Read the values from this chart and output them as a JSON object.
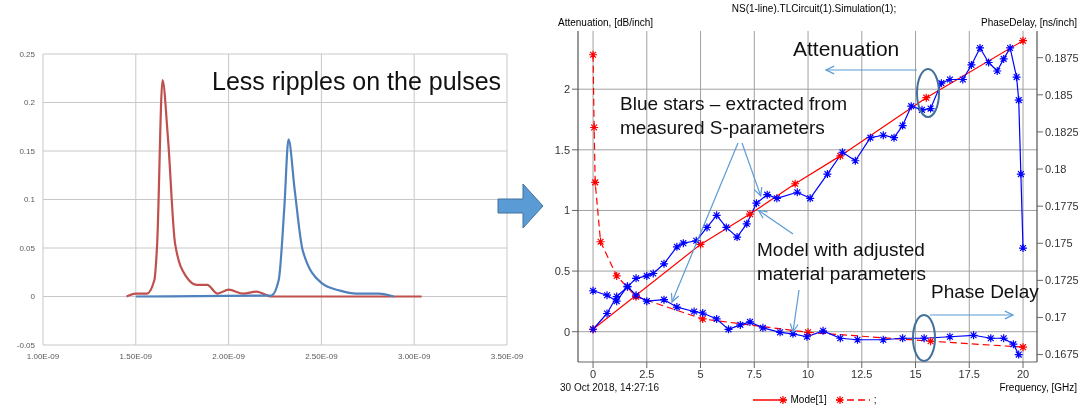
{
  "chart_data": [
    {
      "type": "line",
      "xlim": [
        1e-09,
        3.5e-09
      ],
      "xticks": [
        {
          "value": 1e-09,
          "label": "1.00E-09"
        },
        {
          "value": 1.5e-09,
          "label": "1.50E-09"
        },
        {
          "value": 2e-09,
          "label": "2.00E-09"
        },
        {
          "value": 2.5e-09,
          "label": "2.50E-09"
        },
        {
          "value": 3e-09,
          "label": "3.00E-09"
        },
        {
          "value": 3.5e-09,
          "label": "3.50E-09"
        }
      ],
      "ylim": [
        -0.05,
        0.25
      ],
      "yticks": [
        -0.05,
        0,
        0.05,
        0.1,
        0.15,
        0.2,
        0.25
      ],
      "grid": true,
      "annotations": [
        "Less ripples on the pulses"
      ],
      "series": [
        {
          "color": "#c0504d",
          "x": [
            1.45e-09,
            1.5e-09,
            1.56e-09,
            1.6e-09,
            1.615e-09,
            1.644e-09,
            1.673e-09,
            1.712e-09,
            1.77e-09,
            1.83e-09,
            1.885e-09,
            1.94e-09,
            2e-09,
            2.08e-09,
            2.15e-09,
            2.23e-09,
            3.04e-09
          ],
          "values": [
            0,
            0.003,
            0.003,
            0.017,
            0.054,
            0.223,
            0.164,
            0.054,
            0.021,
            0.012,
            0.012,
            0.003,
            0.007,
            0.003,
            0.005,
            0,
            0
          ]
        },
        {
          "color": "#4f81bd",
          "x": [
            1.5e-09,
            2.23e-09,
            2.27e-09,
            2.3e-09,
            2.323e-09,
            2.356e-09,
            2.4e-09,
            2.5e-09,
            2.6e-09,
            2.69e-09,
            2.81e-09,
            2.89e-09
          ],
          "values": [
            0,
            0.001,
            0.017,
            0.091,
            0.162,
            0.11,
            0.047,
            0.014,
            0.006,
            0.003,
            0.003,
            0
          ]
        }
      ]
    },
    {
      "type": "line",
      "title": "NS(1-line).TLCircuit(1).Simulation(1);",
      "ylabel": "Attenuation, [dB/inch]",
      "y2label": "PhaseDelay, [ns/inch]",
      "xlabel": "Frequency, [GHz]",
      "xlim": [
        -0.7,
        20.65
      ],
      "xticks": [
        0,
        2.5,
        5,
        7.5,
        10,
        12.5,
        15,
        17.5,
        20
      ],
      "ylim": [
        -0.25,
        2.48
      ],
      "yticks": [
        0,
        0.5,
        1,
        1.5,
        2
      ],
      "y2lim": [
        0.167,
        0.1893
      ],
      "y2ticks": [
        0.1675,
        0.17,
        0.1725,
        0.175,
        0.1775,
        0.18,
        0.1825,
        0.185,
        0.1875
      ],
      "grid": true,
      "legend": "bottom",
      "marker": "cross",
      "annotations": [
        "Attenuation",
        {
          "text": "Blue stars – extracted from measured S-parameters",
          "x": 7.8,
          "y": 1.12
        },
        {
          "text": "Model with adjusted material parameters",
          "x": 7.7,
          "y": 1.0
        },
        "Phase Delay",
        "30 Oct 2018, 14:27:16"
      ],
      "series": [
        {
          "name": "Mode[1]",
          "color": "#ff0000",
          "x": [
            0,
            5,
            7.3,
            9.4,
            11.5,
            15.5,
            20
          ],
          "values": [
            0.02,
            0.72,
            0.97,
            1.22,
            1.45,
            1.93,
            2.4
          ]
        },
        {
          "name": ";",
          "color": "#ff0000",
          "axis": "y2",
          "line_style": "dashed",
          "x": [
            0,
            0.05,
            0.1,
            0.35,
            1.1,
            2,
            5.1,
            10,
            15.7,
            20
          ],
          "values": [
            0.1877,
            0.1828,
            0.1791,
            0.1751,
            0.1728,
            0.1714,
            0.1699,
            0.169,
            0.1684,
            0.168
          ]
        },
        {
          "color": "#0000ff",
          "x": [
            0,
            0.65,
            1.1,
            1.6,
            2,
            2.5,
            2.8,
            3.3,
            3.9,
            4.2,
            4.8,
            5.3,
            5.75,
            6.2,
            6.7,
            7.15,
            7.6,
            8.1,
            8.55,
            9.5,
            10.1,
            10.9,
            11.6,
            12.2,
            12.9,
            13.5,
            14,
            14.4,
            14.8,
            15.3,
            15.7,
            16.2,
            16.6,
            17.2,
            17.6,
            18,
            18.4,
            18.8,
            19.1,
            19.4,
            19.7,
            19.8,
            19.9,
            20
          ],
          "values": [
            0.02,
            0.15,
            0.29,
            0.37,
            0.44,
            0.46,
            0.48,
            0.56,
            0.7,
            0.73,
            0.75,
            0.86,
            0.96,
            0.86,
            0.78,
            0.89,
            1.06,
            1.13,
            1.1,
            1.15,
            1.1,
            1.3,
            1.48,
            1.41,
            1.6,
            1.62,
            1.6,
            1.7,
            1.86,
            1.83,
            1.84,
            2.05,
            2.08,
            2.08,
            2.2,
            2.34,
            2.22,
            2.15,
            2.25,
            2.34,
            2.1,
            1.91,
            1.3,
            0.69
          ]
        },
        {
          "color": "#0000ff",
          "axis": "y2",
          "x": [
            0,
            0.65,
            1.1,
            1.6,
            2,
            2.5,
            3.3,
            3.9,
            4.7,
            5.1,
            5.75,
            6.3,
            6.85,
            7.3,
            7.9,
            8.7,
            9.3,
            9.95,
            10.7,
            11.5,
            12.3,
            13.5,
            14.4,
            15.4,
            16.6,
            17.7,
            18.5,
            19.1,
            19.55,
            19.8
          ],
          "values": [
            0.1718,
            0.1715,
            0.1711,
            0.1721,
            0.1715,
            0.1711,
            0.1712,
            0.1707,
            0.1704,
            0.1703,
            0.1699,
            0.1692,
            0.1695,
            0.1697,
            0.1693,
            0.169,
            0.1689,
            0.1687,
            0.1691,
            0.1686,
            0.1685,
            0.1685,
            0.1686,
            0.1686,
            0.1687,
            0.1688,
            0.1686,
            0.1686,
            0.1682,
            0.1675
          ]
        }
      ]
    }
  ]
}
